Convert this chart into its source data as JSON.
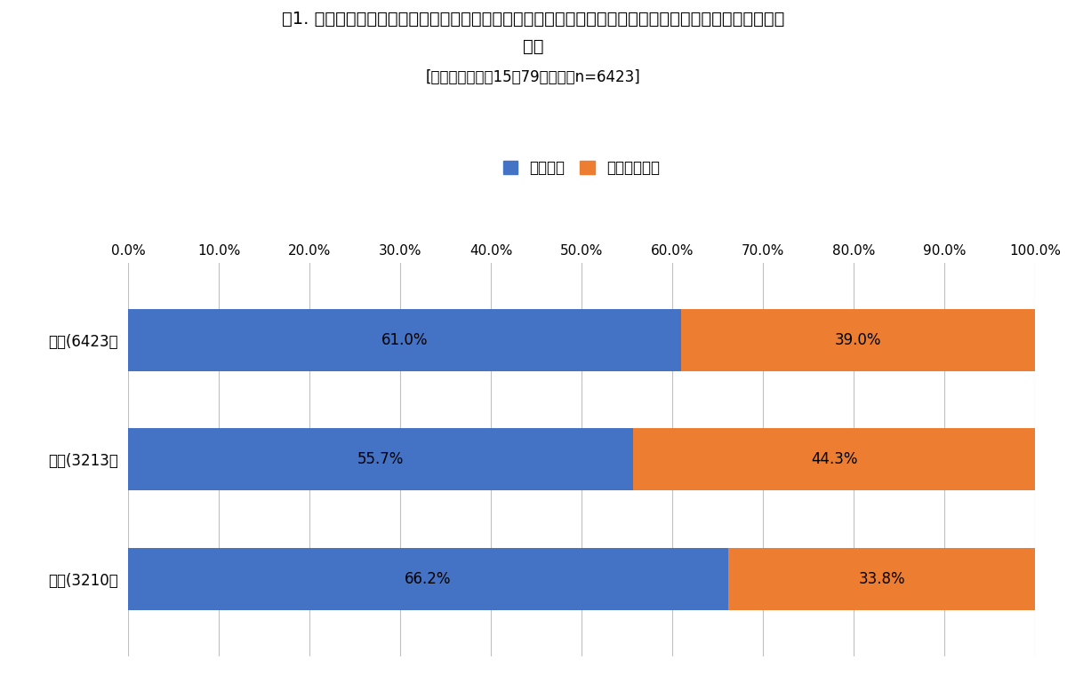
{
  "title_line1": "図1. 公衆空間において「場所や状況を気にせず写真や動画を撮影する」他人の行為に対して気になるかど",
  "title_line2": "うか",
  "subtitle": "[調査対象：全国15～79歳男女・n=6423]",
  "categories": [
    "全体(6423）",
    "男性(3213）",
    "女性(3210）"
  ],
  "blue_values": [
    61.0,
    55.7,
    66.2
  ],
  "orange_values": [
    39.0,
    44.3,
    33.8
  ],
  "blue_color": "#4472C4",
  "orange_color": "#ED7D31",
  "legend_blue": "気になる",
  "legend_orange": "気にならない",
  "xticks": [
    0.0,
    10.0,
    20.0,
    30.0,
    40.0,
    50.0,
    60.0,
    70.0,
    80.0,
    90.0,
    100.0
  ],
  "xlim": [
    0,
    100
  ],
  "background_color": "#ffffff",
  "grid_color": "#C0C0C0",
  "bar_height": 0.52,
  "title_fontsize": 14,
  "subtitle_fontsize": 12,
  "label_fontsize": 12,
  "tick_fontsize": 11,
  "legend_fontsize": 12,
  "bar_label_fontsize": 12
}
